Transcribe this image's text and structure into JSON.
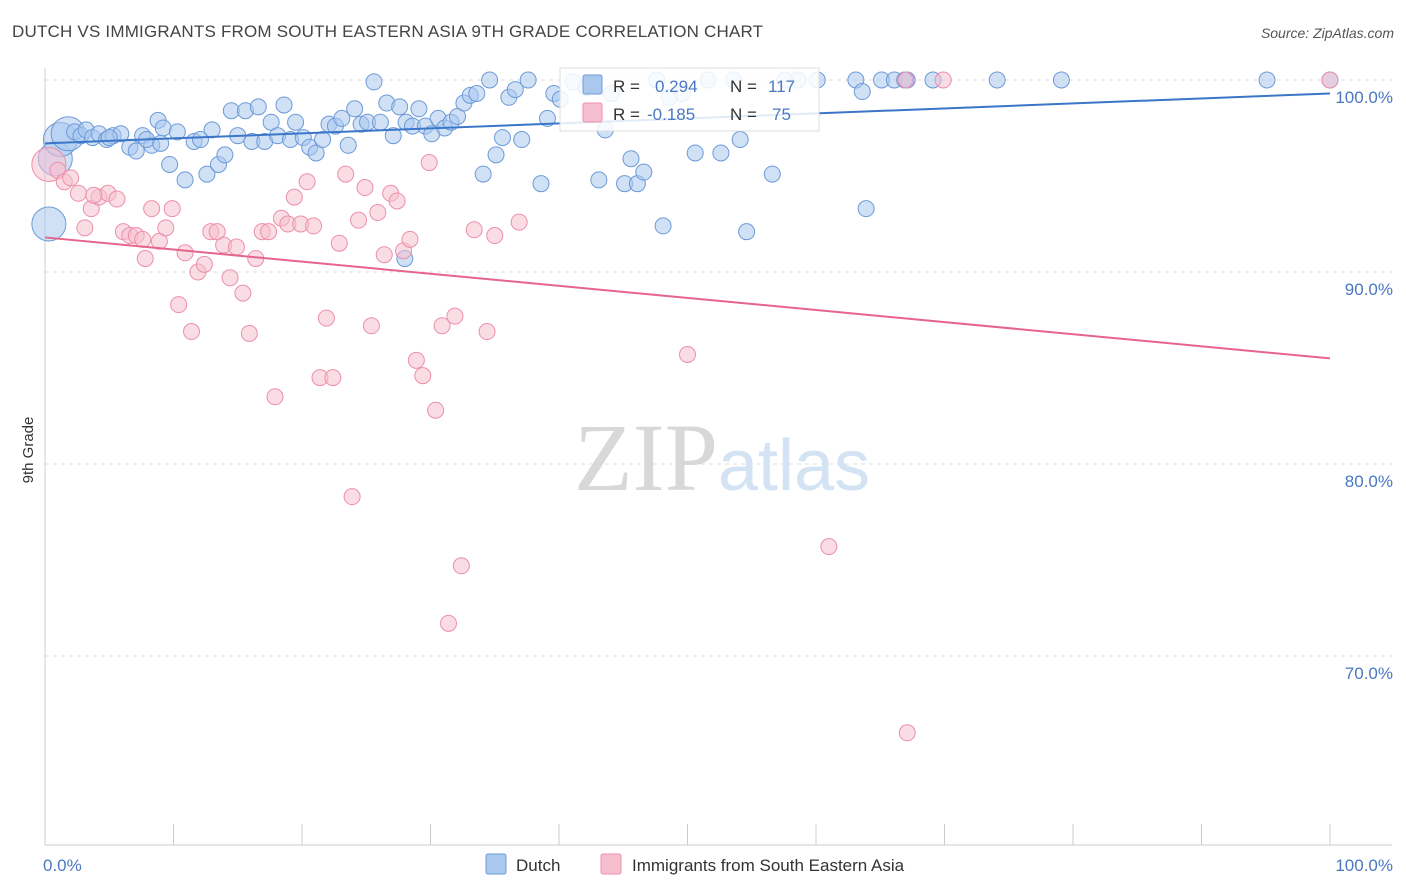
{
  "title": "DUTCH VS IMMIGRANTS FROM SOUTH EASTERN ASIA 9TH GRADE CORRELATION CHART",
  "source": "Source: ZipAtlas.com",
  "watermark": {
    "zip": "ZIP",
    "atlas": "atlas"
  },
  "stats": {
    "r_label": "R =",
    "n_label": "N =",
    "dutch": {
      "r": "0.294",
      "n": "117"
    },
    "immigrants": {
      "r": "-0.185",
      "n": "75"
    }
  },
  "legend": {
    "dutch": "Dutch",
    "immigrants": "Immigrants from South Eastern Asia"
  },
  "colors": {
    "dutch_fill": "#aac8ee",
    "dutch_stroke": "#6d9ad8",
    "dutch_line": "#3b76c8",
    "imm_fill": "#f6bfd0",
    "imm_stroke": "#ec8fab",
    "imm_line": "#e6648e",
    "axis_label": "#4a78c2",
    "grid": "#dddddd"
  },
  "chart_data": {
    "type": "scatter",
    "title": "DUTCH VS IMMIGRANTS FROM SOUTH EASTERN ASIA 9TH GRADE CORRELATION CHART",
    "xlabel": "",
    "ylabel": "9th Grade",
    "xlim": [
      0,
      100
    ],
    "ylim": [
      60,
      101.5
    ],
    "x_tick_labels": [
      {
        "value": 0,
        "label": "0.0%"
      },
      {
        "value": 100,
        "label": "100.0%"
      }
    ],
    "y_tick_labels": [
      {
        "value": 100,
        "label": "100.0%"
      },
      {
        "value": 90,
        "label": "90.0%"
      },
      {
        "value": 80,
        "label": "80.0%"
      },
      {
        "value": 70,
        "label": "70.0%"
      }
    ],
    "series": [
      {
        "name": "Dutch",
        "r": 0.294,
        "n": 117,
        "trend": {
          "x": [
            0,
            100
          ],
          "y": [
            96.7,
            99.3
          ]
        },
        "points": [
          {
            "x": 0.3,
            "y": 92.5,
            "s": "l"
          },
          {
            "x": 0.8,
            "y": 95.9,
            "s": "l"
          },
          {
            "x": 1.2,
            "y": 96.9,
            "s": "l"
          },
          {
            "x": 1.8,
            "y": 97.2,
            "s": "l"
          },
          {
            "x": 2.3,
            "y": 97.3
          },
          {
            "x": 2.8,
            "y": 97.1
          },
          {
            "x": 3.2,
            "y": 97.4
          },
          {
            "x": 3.7,
            "y": 97.0
          },
          {
            "x": 4.2,
            "y": 97.2
          },
          {
            "x": 4.8,
            "y": 96.9
          },
          {
            "x": 5.3,
            "y": 97.1
          },
          {
            "x": 5.9,
            "y": 97.2
          },
          {
            "x": 6.6,
            "y": 96.5
          },
          {
            "x": 7.1,
            "y": 96.3
          },
          {
            "x": 7.6,
            "y": 97.1
          },
          {
            "x": 8.3,
            "y": 96.6
          },
          {
            "x": 8.8,
            "y": 97.9
          },
          {
            "x": 9.2,
            "y": 97.5
          },
          {
            "x": 9.7,
            "y": 95.6
          },
          {
            "x": 10.3,
            "y": 97.3
          },
          {
            "x": 10.9,
            "y": 94.8
          },
          {
            "x": 11.6,
            "y": 96.8
          },
          {
            "x": 12.1,
            "y": 96.9
          },
          {
            "x": 12.6,
            "y": 95.1
          },
          {
            "x": 13.0,
            "y": 97.4
          },
          {
            "x": 13.5,
            "y": 95.6
          },
          {
            "x": 14.0,
            "y": 96.1
          },
          {
            "x": 14.5,
            "y": 98.4
          },
          {
            "x": 15.0,
            "y": 97.1
          },
          {
            "x": 15.6,
            "y": 98.4
          },
          {
            "x": 16.1,
            "y": 96.8
          },
          {
            "x": 16.6,
            "y": 98.6
          },
          {
            "x": 17.1,
            "y": 96.8
          },
          {
            "x": 17.6,
            "y": 97.8
          },
          {
            "x": 18.1,
            "y": 97.1
          },
          {
            "x": 18.6,
            "y": 98.7
          },
          {
            "x": 19.1,
            "y": 96.9
          },
          {
            "x": 19.5,
            "y": 97.8
          },
          {
            "x": 20.1,
            "y": 97.0
          },
          {
            "x": 20.6,
            "y": 96.5
          },
          {
            "x": 21.1,
            "y": 96.2
          },
          {
            "x": 21.6,
            "y": 96.9
          },
          {
            "x": 22.1,
            "y": 97.7
          },
          {
            "x": 22.6,
            "y": 97.6
          },
          {
            "x": 23.1,
            "y": 98.0
          },
          {
            "x": 23.6,
            "y": 96.6
          },
          {
            "x": 24.1,
            "y": 98.5
          },
          {
            "x": 24.6,
            "y": 97.7
          },
          {
            "x": 25.1,
            "y": 97.8
          },
          {
            "x": 25.6,
            "y": 99.9
          },
          {
            "x": 26.1,
            "y": 97.8
          },
          {
            "x": 26.6,
            "y": 98.8
          },
          {
            "x": 27.1,
            "y": 97.1
          },
          {
            "x": 27.6,
            "y": 98.6
          },
          {
            "x": 28.1,
            "y": 97.8
          },
          {
            "x": 28.6,
            "y": 97.6
          },
          {
            "x": 29.1,
            "y": 98.5
          },
          {
            "x": 29.6,
            "y": 97.6
          },
          {
            "x": 30.1,
            "y": 97.2
          },
          {
            "x": 30.6,
            "y": 98.0
          },
          {
            "x": 31.1,
            "y": 97.5
          },
          {
            "x": 31.6,
            "y": 97.8
          },
          {
            "x": 32.1,
            "y": 98.1
          },
          {
            "x": 32.6,
            "y": 98.8
          },
          {
            "x": 33.1,
            "y": 99.2
          },
          {
            "x": 33.6,
            "y": 99.3
          },
          {
            "x": 34.1,
            "y": 95.1
          },
          {
            "x": 34.6,
            "y": 100.0
          },
          {
            "x": 35.1,
            "y": 96.1
          },
          {
            "x": 35.6,
            "y": 97.0
          },
          {
            "x": 36.1,
            "y": 99.1
          },
          {
            "x": 36.6,
            "y": 99.5
          },
          {
            "x": 37.1,
            "y": 96.9
          },
          {
            "x": 37.6,
            "y": 100.0
          },
          {
            "x": 38.6,
            "y": 94.6
          },
          {
            "x": 39.1,
            "y": 98.0
          },
          {
            "x": 39.6,
            "y": 99.3
          },
          {
            "x": 40.1,
            "y": 99.0
          },
          {
            "x": 41.1,
            "y": 99.9
          },
          {
            "x": 42.1,
            "y": 99.6
          },
          {
            "x": 43.1,
            "y": 94.8
          },
          {
            "x": 43.6,
            "y": 97.4
          },
          {
            "x": 44.1,
            "y": 99.3
          },
          {
            "x": 45.1,
            "y": 94.6
          },
          {
            "x": 45.6,
            "y": 95.9
          },
          {
            "x": 46.1,
            "y": 94.6
          },
          {
            "x": 46.6,
            "y": 95.2
          },
          {
            "x": 47.6,
            "y": 100.0
          },
          {
            "x": 48.1,
            "y": 92.4
          },
          {
            "x": 48.6,
            "y": 99.1
          },
          {
            "x": 49.6,
            "y": 99.3
          },
          {
            "x": 50.6,
            "y": 96.2
          },
          {
            "x": 51.6,
            "y": 100.0
          },
          {
            "x": 52.6,
            "y": 96.2
          },
          {
            "x": 53.6,
            "y": 100.0
          },
          {
            "x": 54.1,
            "y": 96.9
          },
          {
            "x": 54.6,
            "y": 92.1
          },
          {
            "x": 56.6,
            "y": 95.1
          },
          {
            "x": 57.6,
            "y": 100.0
          },
          {
            "x": 58.6,
            "y": 100.0
          },
          {
            "x": 60.1,
            "y": 100.0
          },
          {
            "x": 63.1,
            "y": 100.0
          },
          {
            "x": 65.1,
            "y": 100.0
          },
          {
            "x": 66.1,
            "y": 100.0
          },
          {
            "x": 67.1,
            "y": 100.0
          },
          {
            "x": 63.6,
            "y": 99.4
          },
          {
            "x": 63.9,
            "y": 93.3
          },
          {
            "x": 66.9,
            "y": 100.0
          },
          {
            "x": 69.1,
            "y": 100.0
          },
          {
            "x": 74.1,
            "y": 100.0
          },
          {
            "x": 79.1,
            "y": 100.0
          },
          {
            "x": 95.1,
            "y": 100.0
          },
          {
            "x": 100.0,
            "y": 100.0
          },
          {
            "x": 28.0,
            "y": 90.7
          },
          {
            "x": 7.9,
            "y": 96.9
          },
          {
            "x": 9.0,
            "y": 96.7
          },
          {
            "x": 5.0,
            "y": 97.0
          }
        ]
      },
      {
        "name": "Immigrants from South Eastern Asia",
        "r": -0.185,
        "n": 75,
        "trend": {
          "x": [
            0,
            100
          ],
          "y": [
            91.8,
            85.5
          ]
        },
        "points": [
          {
            "x": 0.3,
            "y": 95.6,
            "s": "l"
          },
          {
            "x": 1.0,
            "y": 95.3
          },
          {
            "x": 1.5,
            "y": 94.7
          },
          {
            "x": 2.0,
            "y": 94.9
          },
          {
            "x": 2.6,
            "y": 94.1
          },
          {
            "x": 3.1,
            "y": 92.3
          },
          {
            "x": 3.6,
            "y": 93.3
          },
          {
            "x": 4.2,
            "y": 93.9
          },
          {
            "x": 4.9,
            "y": 94.1
          },
          {
            "x": 5.6,
            "y": 93.8
          },
          {
            "x": 6.1,
            "y": 92.1
          },
          {
            "x": 6.6,
            "y": 91.9
          },
          {
            "x": 7.1,
            "y": 91.9
          },
          {
            "x": 7.6,
            "y": 91.7
          },
          {
            "x": 7.8,
            "y": 90.7
          },
          {
            "x": 8.3,
            "y": 93.3
          },
          {
            "x": 8.9,
            "y": 91.6
          },
          {
            "x": 9.4,
            "y": 92.3
          },
          {
            "x": 9.9,
            "y": 93.3
          },
          {
            "x": 10.4,
            "y": 88.3
          },
          {
            "x": 10.9,
            "y": 91.0
          },
          {
            "x": 11.4,
            "y": 86.9
          },
          {
            "x": 11.9,
            "y": 90.0
          },
          {
            "x": 12.4,
            "y": 90.4
          },
          {
            "x": 12.9,
            "y": 92.1
          },
          {
            "x": 13.4,
            "y": 92.1
          },
          {
            "x": 13.9,
            "y": 91.4
          },
          {
            "x": 14.4,
            "y": 89.7
          },
          {
            "x": 14.9,
            "y": 91.3
          },
          {
            "x": 15.4,
            "y": 88.9
          },
          {
            "x": 15.9,
            "y": 86.8
          },
          {
            "x": 16.4,
            "y": 90.7
          },
          {
            "x": 16.9,
            "y": 92.1
          },
          {
            "x": 17.4,
            "y": 92.1
          },
          {
            "x": 17.9,
            "y": 83.5
          },
          {
            "x": 18.4,
            "y": 92.8
          },
          {
            "x": 18.9,
            "y": 92.5
          },
          {
            "x": 19.4,
            "y": 93.9
          },
          {
            "x": 19.9,
            "y": 92.5
          },
          {
            "x": 20.4,
            "y": 94.7
          },
          {
            "x": 20.9,
            "y": 92.4
          },
          {
            "x": 21.4,
            "y": 84.5
          },
          {
            "x": 21.9,
            "y": 87.6
          },
          {
            "x": 22.4,
            "y": 84.5
          },
          {
            "x": 22.9,
            "y": 91.5
          },
          {
            "x": 23.4,
            "y": 95.1
          },
          {
            "x": 23.9,
            "y": 78.3
          },
          {
            "x": 24.4,
            "y": 92.7
          },
          {
            "x": 24.9,
            "y": 94.4
          },
          {
            "x": 25.4,
            "y": 87.2
          },
          {
            "x": 25.9,
            "y": 93.1
          },
          {
            "x": 26.4,
            "y": 90.9
          },
          {
            "x": 26.9,
            "y": 94.1
          },
          {
            "x": 27.4,
            "y": 93.7
          },
          {
            "x": 27.9,
            "y": 91.1
          },
          {
            "x": 28.4,
            "y": 91.7
          },
          {
            "x": 28.9,
            "y": 85.4
          },
          {
            "x": 29.4,
            "y": 84.6
          },
          {
            "x": 29.9,
            "y": 95.7
          },
          {
            "x": 30.4,
            "y": 82.8
          },
          {
            "x": 30.9,
            "y": 87.2
          },
          {
            "x": 31.4,
            "y": 71.7
          },
          {
            "x": 31.9,
            "y": 87.7
          },
          {
            "x": 32.4,
            "y": 74.7
          },
          {
            "x": 33.4,
            "y": 92.2
          },
          {
            "x": 34.4,
            "y": 86.9
          },
          {
            "x": 35.0,
            "y": 91.9
          },
          {
            "x": 36.9,
            "y": 92.6
          },
          {
            "x": 50.0,
            "y": 85.7
          },
          {
            "x": 61.0,
            "y": 75.7
          },
          {
            "x": 67.0,
            "y": 100.0
          },
          {
            "x": 67.1,
            "y": 66.0
          },
          {
            "x": 69.9,
            "y": 100.0
          },
          {
            "x": 100.0,
            "y": 100.0
          },
          {
            "x": 3.8,
            "y": 94.0
          }
        ]
      }
    ]
  }
}
